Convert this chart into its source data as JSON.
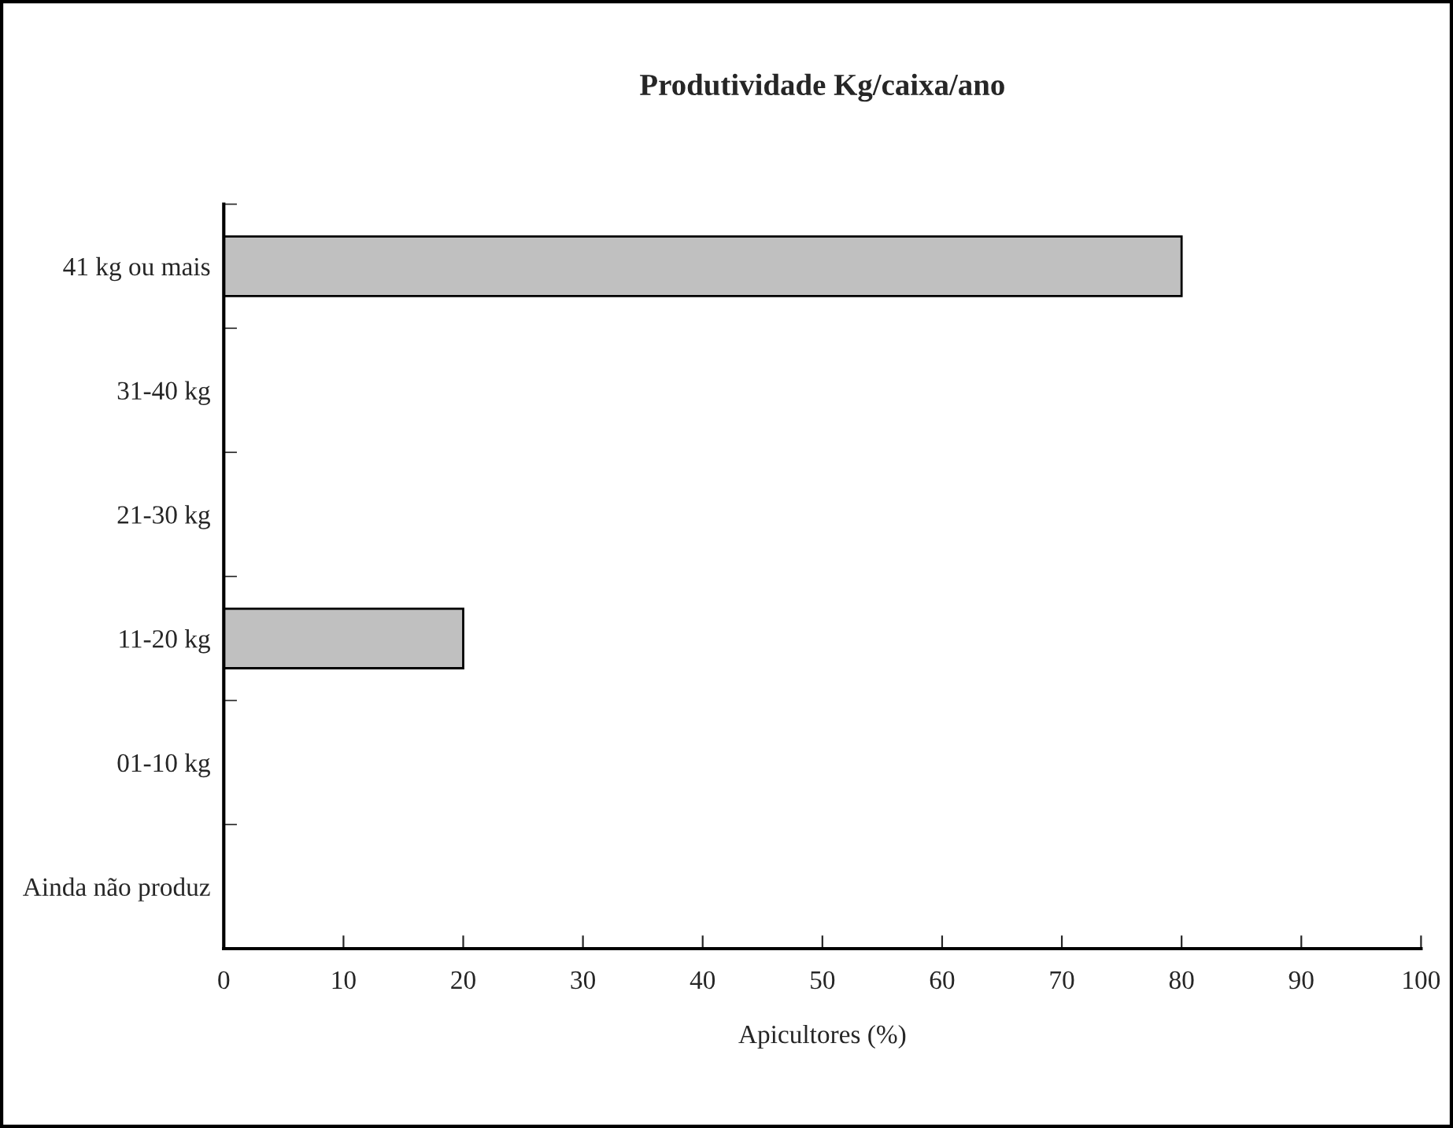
{
  "chart_data": {
    "type": "bar",
    "orientation": "horizontal",
    "title": "Produtividade Kg/caixa/ano",
    "xlabel": "Apicultores (%)",
    "categories": [
      "41 kg ou mais",
      "31-40 kg",
      "21-30 kg",
      "11-20 kg",
      "01-10 kg",
      "Ainda não produz"
    ],
    "values": [
      80,
      0,
      0,
      20,
      0,
      0
    ],
    "color": "#c0c0c0",
    "xlim": [
      0,
      100
    ],
    "xticks": [
      0,
      10,
      20,
      30,
      40,
      50,
      60,
      70,
      80,
      90,
      100
    ],
    "grid": false,
    "legend": false
  }
}
